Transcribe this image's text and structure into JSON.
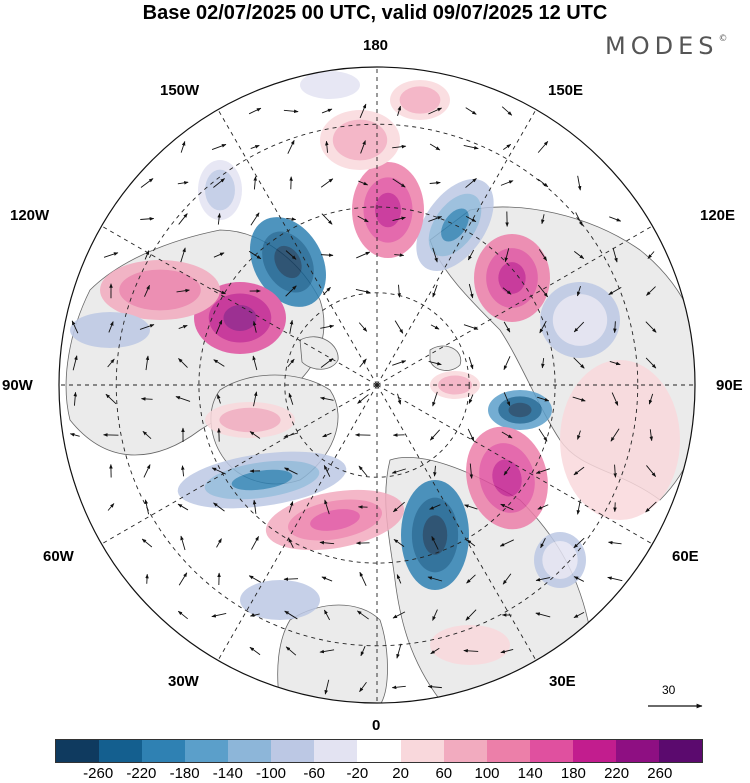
{
  "title": "Base 02/07/2025 00 UTC, valid 09/07/2025 12 UTC",
  "brand": "MODES",
  "brand_mark": "©",
  "map": {
    "projection": "north-polar-stereographic",
    "longitude_labels": {
      "top": "180",
      "upper_left": "150W",
      "upper_right": "150E",
      "left_upper": "120W",
      "right_upper": "120E",
      "left": "90W",
      "right": "90E",
      "left_lower": "60W",
      "right_lower": "60E",
      "lower_left": "30W",
      "lower_right": "30E",
      "bottom": "0"
    },
    "wind_reference": {
      "value": "30"
    },
    "colors": {
      "land": "#ebebeb",
      "ocean": "#ffffff",
      "coast": "#555555",
      "grid": "#222222",
      "arrow": "#111111"
    }
  },
  "colorbar": {
    "colors": [
      "#0f3a5f",
      "#145f8f",
      "#2f81b3",
      "#5b9fca",
      "#8db6d9",
      "#bcc8e4",
      "#e3e3f2",
      "#ffffff",
      "#f9d8dc",
      "#f2abbf",
      "#ec7fa9",
      "#e0509f",
      "#c21d8e",
      "#8e0f82",
      "#5b0a6e"
    ],
    "ticks": [
      "-260",
      "-220",
      "-180",
      "-140",
      "-100",
      "-60",
      "-20",
      "20",
      "60",
      "100",
      "140",
      "180",
      "220",
      "260"
    ]
  }
}
